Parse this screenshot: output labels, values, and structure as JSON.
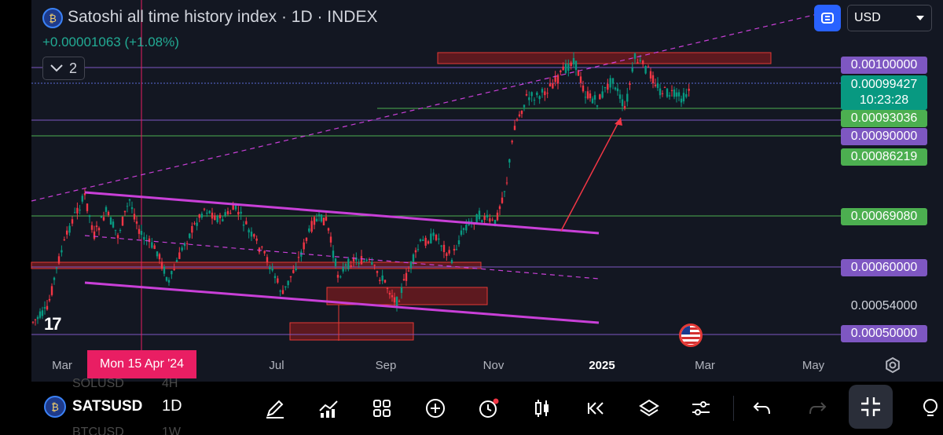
{
  "header": {
    "title": "Satoshi all time history index · 1D · INDEX",
    "change": "+0.00001063 (+1.08%)",
    "indicator_count": "2",
    "currency": "USD"
  },
  "price_labels": {
    "l1": "0.00100000",
    "current_price": "0.00099427",
    "countdown": "10:23:28",
    "l3": "0.00093036",
    "l4": "0.00090000",
    "l5": "0.00086219",
    "l6": "0.00069080",
    "l7": "0.00060000",
    "l8": "0.00054000",
    "l9": "0.00050000"
  },
  "time_axis": {
    "mar": "Mar",
    "crosshair": "Mon 15 Apr '24",
    "jul": "Jul",
    "sep": "Sep",
    "nov": "Nov",
    "y2025": "2025",
    "mar2": "Mar",
    "may": "May"
  },
  "toolbar": {
    "symbol": "SATSUSD",
    "interval": "1D",
    "ghost_top_symbol": "SOLUSD",
    "ghost_top_interval": "4H",
    "ghost_bottom_symbol": "BTCUSD",
    "ghost_bottom_interval": "1W",
    "tools": [
      "brush-icon",
      "chart-line-icon",
      "grid-icon",
      "plus-circle-icon",
      "alert-clock-icon",
      "candles-icon",
      "replay-icon",
      "layers-icon",
      "settings-sliders-icon",
      "undo-icon",
      "redo-icon",
      "collapse-icon",
      "idea-icon"
    ]
  },
  "colors": {
    "up": "#089981",
    "down": "#f23645",
    "background": "#131722",
    "channel": "#c940d8",
    "purple_level": "#7e57c2",
    "green_level": "#4caf50",
    "zone_fill": "#b71c1c",
    "crosshair": "#e91e63"
  }
}
